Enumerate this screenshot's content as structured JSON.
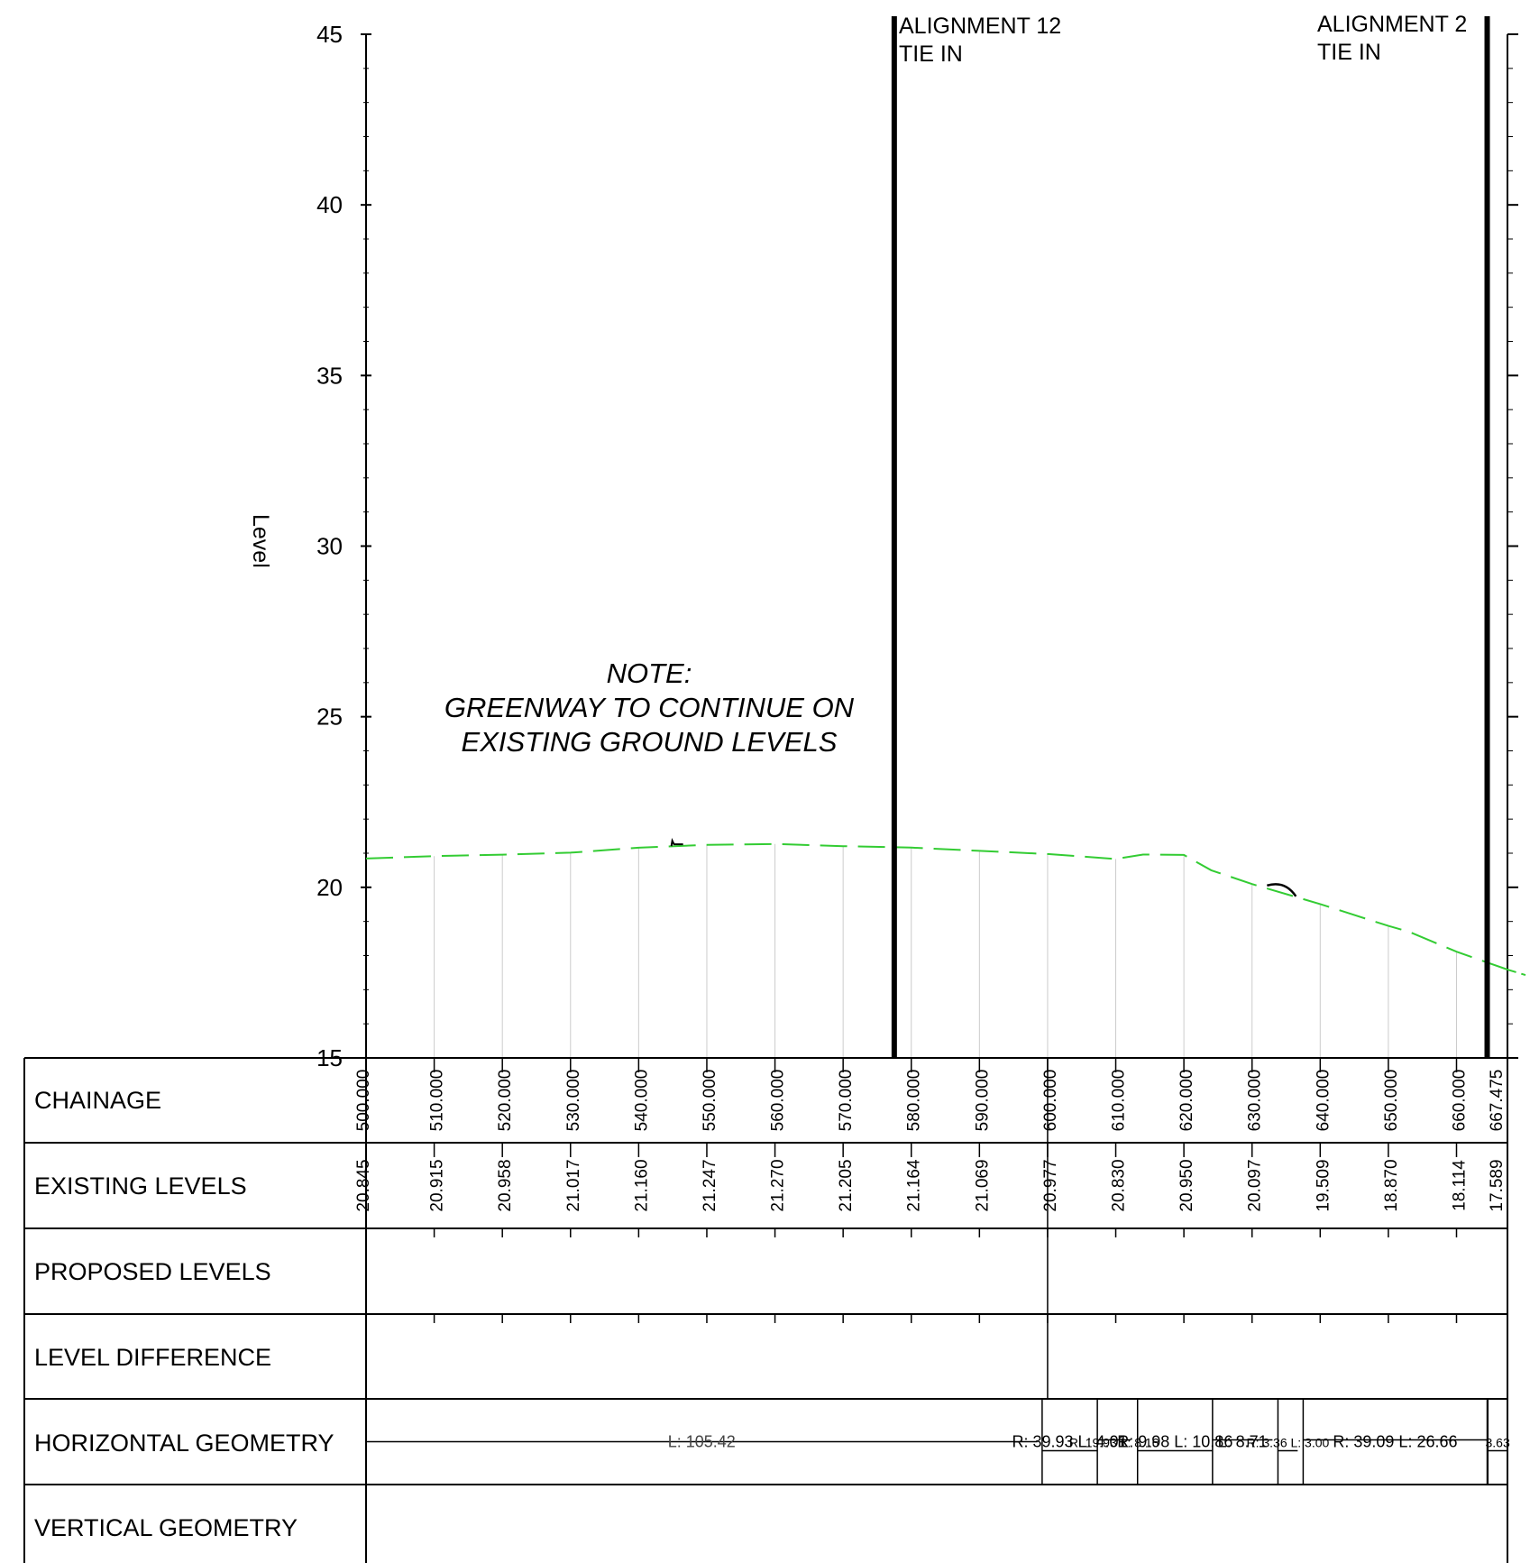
{
  "chart_data": {
    "type": "line",
    "ylabel": "Level",
    "ylim": [
      15,
      45
    ],
    "y_ticks": [
      15,
      20,
      25,
      30,
      35,
      40,
      45
    ],
    "xlim": [
      500,
      667.475
    ],
    "series": [
      {
        "color": "#33cc33",
        "style": "dashed",
        "points": [
          [
            500,
            20.845
          ],
          [
            510,
            20.915
          ],
          [
            520,
            20.958
          ],
          [
            530,
            21.017
          ],
          [
            540,
            21.16
          ],
          [
            550,
            21.247
          ],
          [
            560,
            21.27
          ],
          [
            570,
            21.205
          ],
          [
            580,
            21.164
          ],
          [
            590,
            21.069
          ],
          [
            600,
            20.977
          ],
          [
            610,
            20.83
          ],
          [
            614,
            20.96
          ],
          [
            620,
            20.95
          ],
          [
            624,
            20.5
          ],
          [
            630,
            20.097
          ],
          [
            640,
            19.509
          ],
          [
            650,
            18.87
          ],
          [
            653,
            18.7
          ],
          [
            660,
            18.114
          ],
          [
            667.475,
            17.589
          ]
        ]
      }
    ],
    "chainage_ticks": [
      500,
      510,
      520,
      530,
      540,
      550,
      560,
      570,
      580,
      590,
      600,
      610,
      620,
      630,
      640,
      650,
      660,
      667.475
    ],
    "chainage_labels": [
      "500.000",
      "510.000",
      "520.000",
      "530.000",
      "540.000",
      "550.000",
      "560.000",
      "570.000",
      "580.000",
      "590.000",
      "600.000",
      "610.000",
      "620.000",
      "630.000",
      "640.000",
      "650.000",
      "660.000",
      "667.475"
    ],
    "existing_levels": [
      "20.845",
      "20.915",
      "20.958",
      "21.017",
      "21.160",
      "21.247",
      "21.270",
      "21.205",
      "21.164",
      "21.069",
      "20.977",
      "20.830",
      "20.950",
      "20.097",
      "19.509",
      "18.870",
      "18.114",
      "17.589"
    ],
    "markers": [
      {
        "chainage": 577.5,
        "lines": [
          "ALIGNMENT 12",
          "TIE IN"
        ]
      },
      {
        "chainage": 664.5,
        "lines": [
          "ALIGNMENT 2",
          "TIE IN"
        ]
      }
    ],
    "note": [
      "NOTE:",
      "GREENWAY TO CONTINUE ON",
      "EXISTING GROUND LEVELS"
    ]
  },
  "table": {
    "rows": [
      "CHAINAGE",
      "EXISTING LEVELS",
      "PROPOSED LEVELS",
      "LEVEL DIFFERENCE",
      "HORIZONTAL GEOMETRY",
      "VERTICAL GEOMETRY"
    ]
  },
  "horizontal_geometry": {
    "segments": [
      {
        "from": 500,
        "to": 598.5,
        "text": "L: 105.42"
      },
      {
        "from": 599.2,
        "to": 607.3,
        "text": "R: 39.93  L: 4.01"
      },
      {
        "from": 607.3,
        "to": 612.2,
        "text": "R: 19.93  L: 8.16"
      },
      {
        "from": 613.2,
        "to": 624.2,
        "text": "R: 9.98  L: 10.86"
      },
      {
        "from": 624.2,
        "to": 633.0,
        "text": "L: 8.71"
      },
      {
        "from": 633.8,
        "to": 636.7,
        "text": "R: 3.36  L: 3.00"
      },
      {
        "from": 637.5,
        "to": 664.5,
        "text": "R: 39.09  L: 26.66"
      },
      {
        "from": 664.6,
        "to": 667.475,
        "text": "3.63"
      }
    ]
  }
}
